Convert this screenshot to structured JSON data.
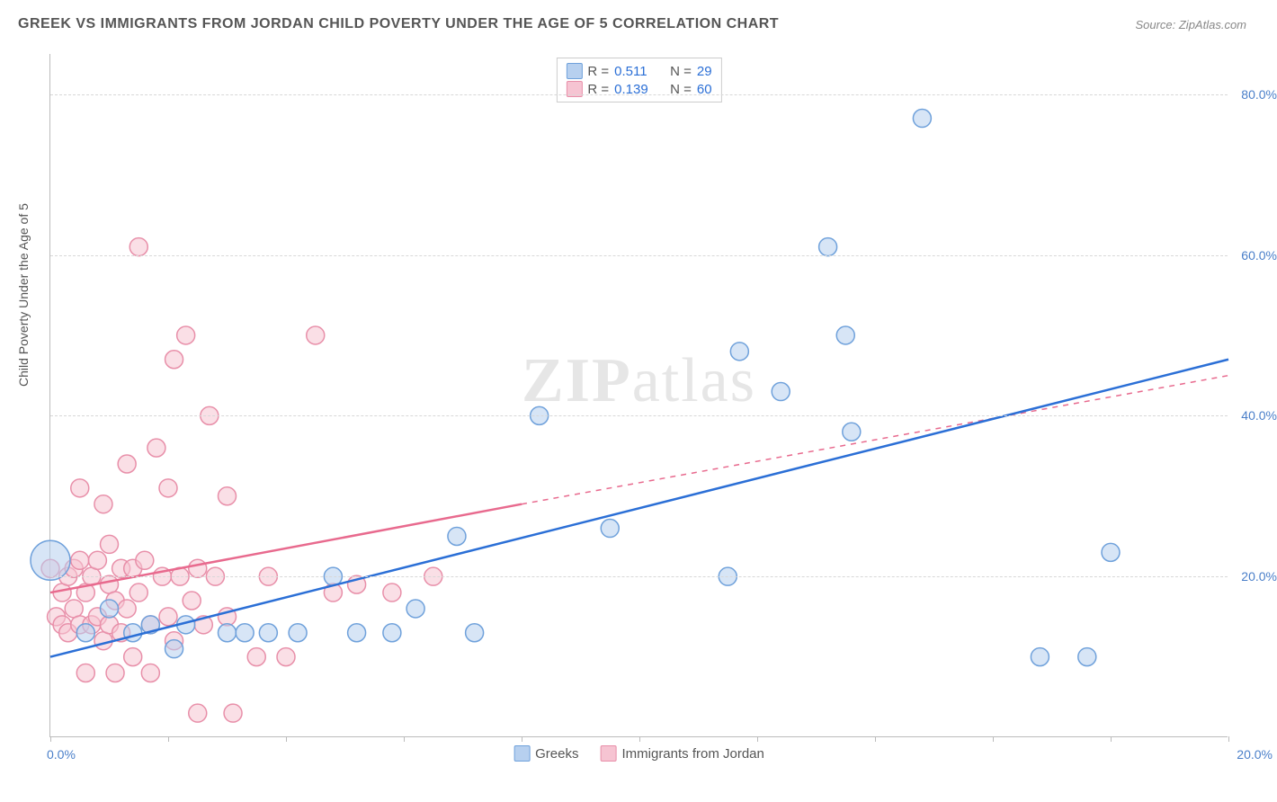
{
  "title": "GREEK VS IMMIGRANTS FROM JORDAN CHILD POVERTY UNDER THE AGE OF 5 CORRELATION CHART",
  "source": "Source: ZipAtlas.com",
  "y_axis_label": "Child Poverty Under the Age of 5",
  "watermark": {
    "bold": "ZIP",
    "rest": "atlas"
  },
  "chart": {
    "type": "scatter-correlation",
    "xlim": [
      0,
      20
    ],
    "ylim": [
      0,
      85
    ],
    "x_ticks_label": {
      "left": "0.0%",
      "right": "20.0%"
    },
    "x_minor_ticks": [
      0,
      2,
      4,
      6,
      8,
      10,
      12,
      14,
      16,
      18,
      20
    ],
    "y_ticks": [
      20,
      40,
      60,
      80
    ],
    "y_tick_labels": [
      "20.0%",
      "40.0%",
      "60.0%",
      "80.0%"
    ],
    "grid_color": "#d8d8d8",
    "background_color": "#ffffff",
    "axis_color": "#bbbbbb",
    "label_fontsize": 14,
    "tick_color": "#4a7fc9",
    "marker_radius": 10,
    "marker_radius_large": 22,
    "series": [
      {
        "name": "Greeks",
        "label": "Greeks",
        "color_fill": "#b7d0ef",
        "color_stroke": "#6fa1db",
        "fill_opacity": 0.55,
        "R": "0.511",
        "N": "29",
        "trend": {
          "solid": {
            "x1": 0,
            "y1": 10,
            "x2": 20,
            "y2": 47
          },
          "color": "#2b6fd6",
          "width": 2.5
        },
        "points": [
          {
            "x": 0.0,
            "y": 22,
            "r": 22
          },
          {
            "x": 0.6,
            "y": 13
          },
          {
            "x": 1.0,
            "y": 16
          },
          {
            "x": 1.4,
            "y": 13
          },
          {
            "x": 1.7,
            "y": 14
          },
          {
            "x": 2.1,
            "y": 11
          },
          {
            "x": 2.3,
            "y": 14
          },
          {
            "x": 3.0,
            "y": 13
          },
          {
            "x": 3.3,
            "y": 13
          },
          {
            "x": 3.7,
            "y": 13
          },
          {
            "x": 4.2,
            "y": 13
          },
          {
            "x": 4.8,
            "y": 20
          },
          {
            "x": 5.2,
            "y": 13
          },
          {
            "x": 5.8,
            "y": 13
          },
          {
            "x": 6.2,
            "y": 16
          },
          {
            "x": 6.9,
            "y": 25
          },
          {
            "x": 7.2,
            "y": 13
          },
          {
            "x": 8.3,
            "y": 40
          },
          {
            "x": 9.5,
            "y": 26
          },
          {
            "x": 11.5,
            "y": 20
          },
          {
            "x": 11.7,
            "y": 48
          },
          {
            "x": 12.4,
            "y": 43
          },
          {
            "x": 13.2,
            "y": 61
          },
          {
            "x": 13.5,
            "y": 50
          },
          {
            "x": 13.6,
            "y": 38
          },
          {
            "x": 14.8,
            "y": 77
          },
          {
            "x": 16.8,
            "y": 10
          },
          {
            "x": 17.6,
            "y": 10
          },
          {
            "x": 18.0,
            "y": 23
          }
        ]
      },
      {
        "name": "Immigrants from Jordan",
        "label": "Immigrants from Jordan",
        "color_fill": "#f6c4d2",
        "color_stroke": "#e88fa9",
        "fill_opacity": 0.55,
        "R": "0.139",
        "N": "60",
        "trend": {
          "solid": {
            "x1": 0,
            "y1": 18,
            "x2": 8,
            "y2": 29
          },
          "dashed": {
            "x1": 8,
            "y1": 29,
            "x2": 20,
            "y2": 45
          },
          "color": "#e86a8e",
          "width": 2.5
        },
        "points": [
          {
            "x": 0.0,
            "y": 21
          },
          {
            "x": 0.1,
            "y": 15
          },
          {
            "x": 0.2,
            "y": 18
          },
          {
            "x": 0.2,
            "y": 14
          },
          {
            "x": 0.3,
            "y": 20
          },
          {
            "x": 0.3,
            "y": 13
          },
          {
            "x": 0.4,
            "y": 21
          },
          {
            "x": 0.4,
            "y": 16
          },
          {
            "x": 0.5,
            "y": 22
          },
          {
            "x": 0.5,
            "y": 14
          },
          {
            "x": 0.5,
            "y": 31
          },
          {
            "x": 0.6,
            "y": 18
          },
          {
            "x": 0.6,
            "y": 8
          },
          {
            "x": 0.7,
            "y": 14
          },
          {
            "x": 0.7,
            "y": 20
          },
          {
            "x": 0.8,
            "y": 15
          },
          {
            "x": 0.8,
            "y": 22
          },
          {
            "x": 0.9,
            "y": 12
          },
          {
            "x": 0.9,
            "y": 29
          },
          {
            "x": 1.0,
            "y": 19
          },
          {
            "x": 1.0,
            "y": 14
          },
          {
            "x": 1.0,
            "y": 24
          },
          {
            "x": 1.1,
            "y": 17
          },
          {
            "x": 1.1,
            "y": 8
          },
          {
            "x": 1.2,
            "y": 21
          },
          {
            "x": 1.2,
            "y": 13
          },
          {
            "x": 1.3,
            "y": 34
          },
          {
            "x": 1.3,
            "y": 16
          },
          {
            "x": 1.4,
            "y": 21
          },
          {
            "x": 1.4,
            "y": 10
          },
          {
            "x": 1.5,
            "y": 18
          },
          {
            "x": 1.5,
            "y": 61
          },
          {
            "x": 1.6,
            "y": 22
          },
          {
            "x": 1.7,
            "y": 14
          },
          {
            "x": 1.7,
            "y": 8
          },
          {
            "x": 1.8,
            "y": 36
          },
          {
            "x": 1.9,
            "y": 20
          },
          {
            "x": 2.0,
            "y": 15
          },
          {
            "x": 2.0,
            "y": 31
          },
          {
            "x": 2.1,
            "y": 12
          },
          {
            "x": 2.1,
            "y": 47
          },
          {
            "x": 2.2,
            "y": 20
          },
          {
            "x": 2.3,
            "y": 50
          },
          {
            "x": 2.4,
            "y": 17
          },
          {
            "x": 2.5,
            "y": 21
          },
          {
            "x": 2.5,
            "y": 3
          },
          {
            "x": 2.6,
            "y": 14
          },
          {
            "x": 2.7,
            "y": 40
          },
          {
            "x": 2.8,
            "y": 20
          },
          {
            "x": 3.0,
            "y": 30
          },
          {
            "x": 3.0,
            "y": 15
          },
          {
            "x": 3.1,
            "y": 3
          },
          {
            "x": 3.5,
            "y": 10
          },
          {
            "x": 3.7,
            "y": 20
          },
          {
            "x": 4.0,
            "y": 10
          },
          {
            "x": 4.5,
            "y": 50
          },
          {
            "x": 4.8,
            "y": 18
          },
          {
            "x": 5.2,
            "y": 19
          },
          {
            "x": 5.8,
            "y": 18
          },
          {
            "x": 6.5,
            "y": 20
          }
        ]
      }
    ]
  }
}
